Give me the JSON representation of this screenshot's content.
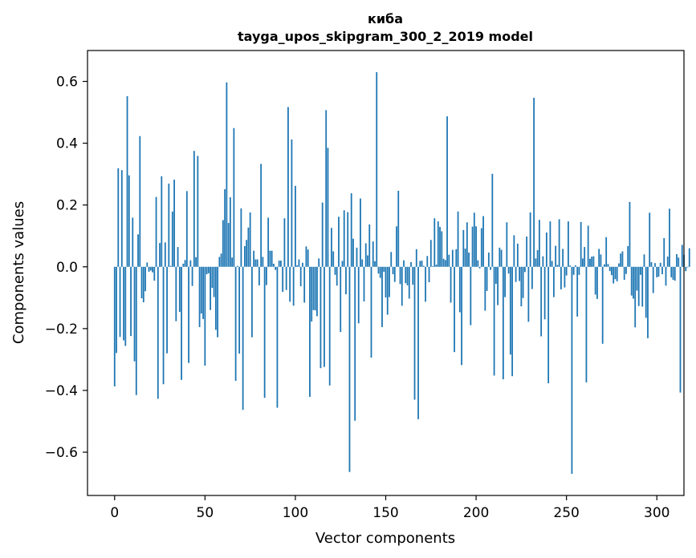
{
  "chart_data": {
    "type": "bar",
    "title_line1": "киба",
    "title_line2": "tayga_upos_skipgram_300_2_2019 model",
    "xlabel": "Vector components",
    "ylabel": "Components values",
    "xlim": [
      -15.0,
      315.0
    ],
    "ylim": [
      -0.74,
      0.7
    ],
    "x_ticks": [
      0,
      50,
      100,
      150,
      200,
      250,
      300
    ],
    "x_tick_labels": [
      "0",
      "50",
      "100",
      "150",
      "200",
      "250",
      "300"
    ],
    "y_ticks": [
      -0.6,
      -0.4,
      -0.2,
      0.0,
      0.2,
      0.4,
      0.6
    ],
    "y_tick_labels": [
      "−0.6",
      "−0.4",
      "−0.2",
      "0.0",
      "0.2",
      "0.4",
      "0.6"
    ],
    "bar_color": "#1f77b4",
    "values": [
      -0.387,
      -0.279,
      0.319,
      -0.227,
      0.313,
      -0.238,
      -0.256,
      0.552,
      0.296,
      -0.224,
      0.159,
      -0.306,
      -0.415,
      0.105,
      0.423,
      -0.102,
      -0.115,
      -0.079,
      0.014,
      -0.016,
      -0.012,
      -0.018,
      -0.045,
      0.226,
      -0.427,
      0.077,
      0.293,
      -0.38,
      0.079,
      -0.28,
      0.269,
      0.003,
      0.179,
      0.282,
      -0.176,
      0.064,
      -0.146,
      -0.366,
      0.01,
      0.022,
      0.245,
      -0.311,
      0.021,
      -0.062,
      0.375,
      0.031,
      0.359,
      -0.195,
      -0.151,
      -0.169,
      -0.32,
      -0.024,
      -0.021,
      -0.14,
      -0.068,
      -0.098,
      -0.204,
      -0.228,
      0.032,
      0.043,
      0.151,
      0.251,
      0.597,
      0.142,
      0.225,
      0.03,
      0.449,
      -0.369,
      0.003,
      -0.281,
      0.189,
      -0.463,
      0.067,
      0.087,
      0.127,
      0.176,
      -0.228,
      0.052,
      0.024,
      0.024,
      -0.06,
      0.333,
      0.032,
      -0.424,
      -0.059,
      0.159,
      0.052,
      0.052,
      0.01,
      -0.01,
      -0.456,
      0.02,
      0.02,
      -0.081,
      0.157,
      -0.075,
      0.517,
      -0.113,
      0.412,
      -0.126,
      0.262,
      0.005,
      0.024,
      -0.063,
      0.013,
      -0.116,
      0.066,
      0.056,
      -0.421,
      -0.177,
      -0.14,
      -0.141,
      -0.16,
      0.027,
      -0.328,
      0.208,
      -0.324,
      0.507,
      0.385,
      -0.384,
      0.126,
      0.05,
      -0.026,
      -0.061,
      0.162,
      -0.211,
      0.019,
      0.183,
      -0.089,
      0.177,
      -0.664,
      0.238,
      0.091,
      -0.498,
      0.062,
      -0.183,
      0.221,
      0.024,
      -0.112,
      0.076,
      0.037,
      0.137,
      -0.294,
      0.082,
      0.018,
      0.63,
      -0.022,
      -0.036,
      -0.195,
      -0.016,
      -0.099,
      -0.155,
      -0.098,
      0.048,
      -0.024,
      -0.049,
      0.131,
      0.246,
      -0.056,
      -0.126,
      0.021,
      -0.053,
      -0.06,
      -0.103,
      0.015,
      -0.058,
      -0.43,
      0.057,
      -0.493,
      0.019,
      0.02,
      0.003,
      -0.113,
      0.035,
      -0.05,
      0.087,
      0.002,
      0.157,
      0.007,
      0.147,
      0.129,
      0.115,
      0.026,
      0.022,
      0.487,
      0.039,
      -0.116,
      0.055,
      -0.276,
      0.057,
      0.179,
      -0.147,
      -0.318,
      0.119,
      0.059,
      0.144,
      0.046,
      -0.189,
      0.13,
      0.175,
      0.131,
      0.021,
      -0.005,
      0.125,
      0.164,
      -0.142,
      -0.078,
      0.046,
      -0.01,
      0.301,
      -0.352,
      -0.055,
      -0.124,
      0.062,
      0.055,
      -0.364,
      -0.098,
      0.144,
      -0.022,
      -0.284,
      -0.354,
      0.102,
      -0.049,
      0.075,
      -0.046,
      -0.128,
      -0.101,
      -0.017,
      0.098,
      -0.178,
      0.176,
      -0.072,
      0.547,
      0.027,
      0.054,
      0.152,
      -0.225,
      0.034,
      -0.17,
      0.111,
      -0.377,
      0.147,
      0.019,
      -0.098,
      0.068,
      0.006,
      0.154,
      -0.073,
      0.058,
      -0.067,
      -0.028,
      0.147,
      0.004,
      -0.67,
      -0.026,
      0.005,
      -0.161,
      -0.026,
      0.145,
      0.027,
      0.064,
      -0.374,
      0.133,
      0.026,
      0.033,
      0.034,
      -0.09,
      -0.104,
      0.058,
      0.04,
      -0.249,
      0.008,
      0.096,
      0.009,
      -0.014,
      -0.027,
      -0.054,
      -0.04,
      -0.047,
      0.011,
      0.043,
      0.05,
      -0.042,
      -0.023,
      0.067,
      0.21,
      -0.093,
      -0.103,
      -0.196,
      -0.077,
      -0.127,
      -0.026,
      -0.129,
      0.04,
      -0.165,
      -0.231,
      0.175,
      0.015,
      -0.085,
      0.012,
      -0.034,
      -0.032,
      0.013,
      -0.024,
      0.093,
      -0.061,
      0.033,
      0.188,
      -0.034,
      -0.042,
      -0.045,
      0.041,
      0.03,
      -0.407,
      0.071,
      0.039,
      -0.014,
      -0.002,
      0.06
    ]
  }
}
